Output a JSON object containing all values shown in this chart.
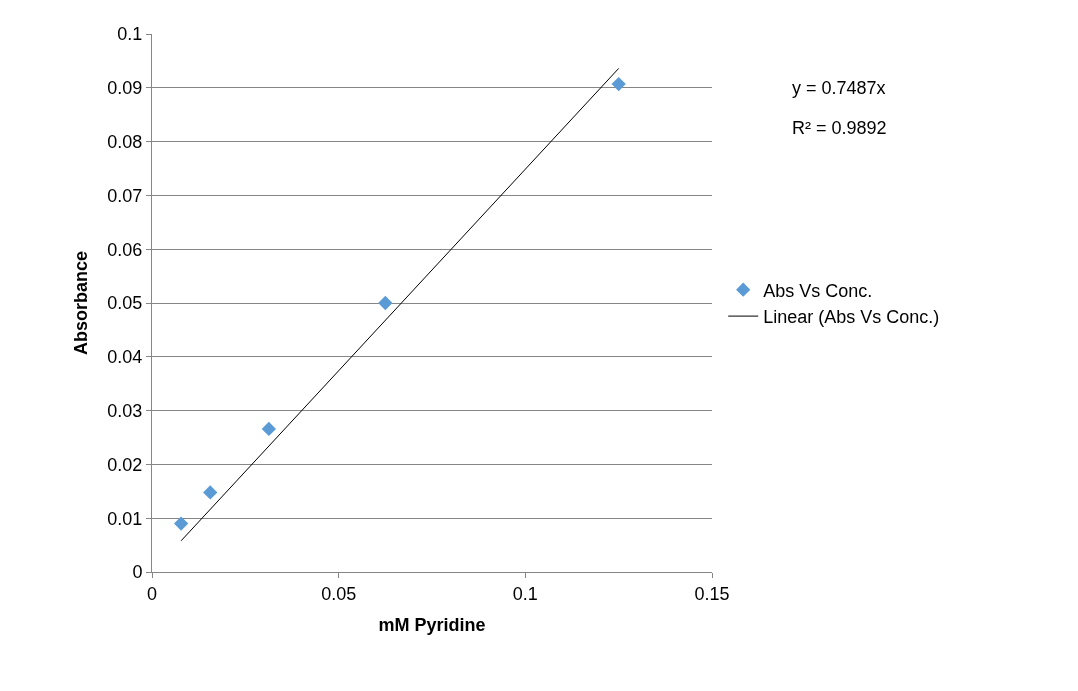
{
  "chart_data": {
    "type": "scatter",
    "xlabel": "mM Pyridine",
    "ylabel": "Absorbance",
    "xlim": [
      0,
      0.15
    ],
    "xticks": [
      0,
      0.05,
      0.1,
      0.15
    ],
    "ylim": [
      0,
      0.1
    ],
    "yticks": [
      0,
      0.01,
      0.02,
      0.03,
      0.04,
      0.05,
      0.06,
      0.07,
      0.08,
      0.09,
      0.1
    ],
    "grid": "y",
    "legend": "right",
    "marker": "diamond",
    "series": [
      {
        "name": "Abs Vs Conc.",
        "color": "#5b9bd5",
        "x": [
          0.0078,
          0.0156,
          0.0313,
          0.0625,
          0.125
        ],
        "values": [
          0.009,
          0.0148,
          0.0266,
          0.05,
          0.0907
        ]
      },
      {
        "name": "Linear (Abs Vs Conc.)",
        "type": "line",
        "color": "#000000",
        "line_style": "solid",
        "marker": "none",
        "x": [
          0.0078,
          0.125
        ],
        "values": [
          0.0058,
          0.0936
        ]
      }
    ],
    "annotations": [
      "y = 0.7487x",
      "R² = 0.9892"
    ]
  }
}
